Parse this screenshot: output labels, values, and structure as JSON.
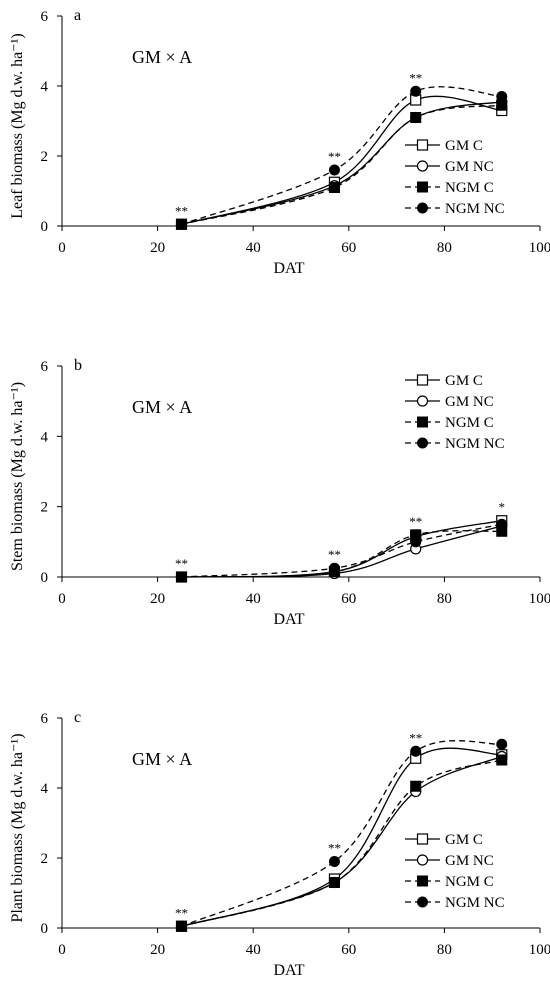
{
  "chart_data": [
    {
      "panel": "a",
      "type": "line",
      "annotation": "GM × A",
      "xlabel": "DAT",
      "ylabel": "Leaf biomass (Mg d.w. ha⁻¹)",
      "xlim": [
        0,
        100
      ],
      "ylim": [
        0,
        6
      ],
      "xticks": [
        "0",
        "20",
        "40",
        "60",
        "80",
        "100"
      ],
      "yticks": [
        "0",
        "2",
        "4",
        "6"
      ],
      "grid": false,
      "legend_position": "bottom-right",
      "x": [
        25,
        57,
        74,
        92
      ],
      "significance": [
        "**",
        "**",
        "**",
        ""
      ],
      "series": [
        {
          "name": "GM C",
          "style": "solid",
          "marker": "open-square",
          "values": [
            0.05,
            1.25,
            3.6,
            3.3
          ]
        },
        {
          "name": "GM NC",
          "style": "solid",
          "marker": "open-circle",
          "values": [
            0.05,
            1.15,
            3.1,
            3.55
          ]
        },
        {
          "name": "NGM C",
          "style": "dashed",
          "marker": "filled-square",
          "values": [
            0.05,
            1.1,
            3.1,
            3.45
          ]
        },
        {
          "name": "NGM NC",
          "style": "dashed",
          "marker": "filled-circle",
          "values": [
            0.05,
            1.6,
            3.85,
            3.7
          ]
        }
      ]
    },
    {
      "panel": "b",
      "type": "line",
      "annotation": "GM × A",
      "xlabel": "DAT",
      "ylabel": "Stem biomass (Mg d.w. ha⁻¹)",
      "xlim": [
        0,
        100
      ],
      "ylim": [
        0,
        6
      ],
      "xticks": [
        "0",
        "20",
        "40",
        "60",
        "80",
        "100"
      ],
      "yticks": [
        "0",
        "2",
        "4",
        "6"
      ],
      "grid": false,
      "legend_position": "top-right",
      "x": [
        25,
        57,
        74,
        92
      ],
      "significance": [
        "**",
        "**",
        "**",
        "*"
      ],
      "series": [
        {
          "name": "GM C",
          "style": "solid",
          "marker": "open-square",
          "values": [
            0.0,
            0.15,
            1.15,
            1.6
          ]
        },
        {
          "name": "GM NC",
          "style": "solid",
          "marker": "open-circle",
          "values": [
            0.0,
            0.1,
            0.8,
            1.45
          ]
        },
        {
          "name": "NGM C",
          "style": "dashed",
          "marker": "filled-square",
          "values": [
            0.0,
            0.15,
            1.2,
            1.3
          ]
        },
        {
          "name": "NGM NC",
          "style": "dashed",
          "marker": "filled-circle",
          "values": [
            0.0,
            0.25,
            1.0,
            1.5
          ]
        }
      ]
    },
    {
      "panel": "c",
      "type": "line",
      "annotation": "GM × A",
      "xlabel": "DAT",
      "ylabel": "Plant biomass (Mg d.w. ha⁻¹)",
      "xlim": [
        0,
        100
      ],
      "ylim": [
        0,
        6
      ],
      "xticks": [
        "0",
        "20",
        "40",
        "60",
        "80",
        "100"
      ],
      "yticks": [
        "0",
        "2",
        "4",
        "6"
      ],
      "grid": false,
      "legend_position": "bottom-right",
      "x": [
        25,
        57,
        74,
        92
      ],
      "significance": [
        "**",
        "**",
        "**",
        ""
      ],
      "series": [
        {
          "name": "GM C",
          "style": "solid",
          "marker": "open-square",
          "values": [
            0.05,
            1.4,
            4.85,
            4.95
          ]
        },
        {
          "name": "GM NC",
          "style": "solid",
          "marker": "open-circle",
          "values": [
            0.05,
            1.3,
            3.9,
            4.9
          ]
        },
        {
          "name": "NGM C",
          "style": "dashed",
          "marker": "filled-square",
          "values": [
            0.05,
            1.3,
            4.05,
            4.8
          ]
        },
        {
          "name": "NGM NC",
          "style": "dashed",
          "marker": "filled-circle",
          "values": [
            0.05,
            1.9,
            5.05,
            5.25
          ]
        }
      ]
    }
  ]
}
